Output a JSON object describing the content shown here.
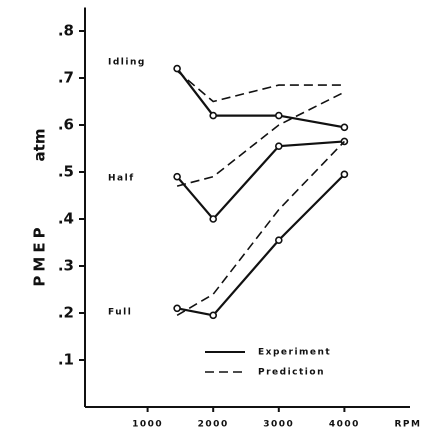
{
  "chart_data": {
    "type": "line",
    "y_label": "PMEP",
    "y_unit": "atm",
    "x_label": "RPM",
    "x": [
      1450,
      2000,
      3000,
      4000
    ],
    "xlim": [
      0,
      5000
    ],
    "xticks": [
      1000,
      2000,
      3000,
      4000
    ],
    "ylim": [
      0,
      0.85
    ],
    "yticks": [
      {
        "value": 0.1,
        "label": ".1"
      },
      {
        "value": 0.2,
        "label": ".2"
      },
      {
        "value": 0.3,
        "label": ".3"
      },
      {
        "value": 0.4,
        "label": ".4"
      },
      {
        "value": 0.5,
        "label": ".5"
      },
      {
        "value": 0.6,
        "label": ".6"
      },
      {
        "value": 0.7,
        "label": ".7"
      },
      {
        "value": 0.8,
        "label": ".8"
      }
    ],
    "legend": {
      "experiment": "Experiment",
      "prediction": "Prediction"
    },
    "color": "#111111",
    "groups": [
      {
        "label": "Idling",
        "experiment": [
          0.72,
          0.62,
          0.62,
          0.595
        ],
        "prediction": [
          0.715,
          0.65,
          0.685,
          0.685
        ]
      },
      {
        "label": "Half",
        "experiment": [
          0.49,
          0.4,
          0.555,
          0.565
        ],
        "prediction": [
          0.47,
          0.49,
          0.6,
          0.67
        ]
      },
      {
        "label": "Full",
        "experiment": [
          0.21,
          0.195,
          0.355,
          0.495
        ],
        "prediction": [
          0.195,
          0.24,
          0.42,
          0.565
        ]
      }
    ]
  }
}
